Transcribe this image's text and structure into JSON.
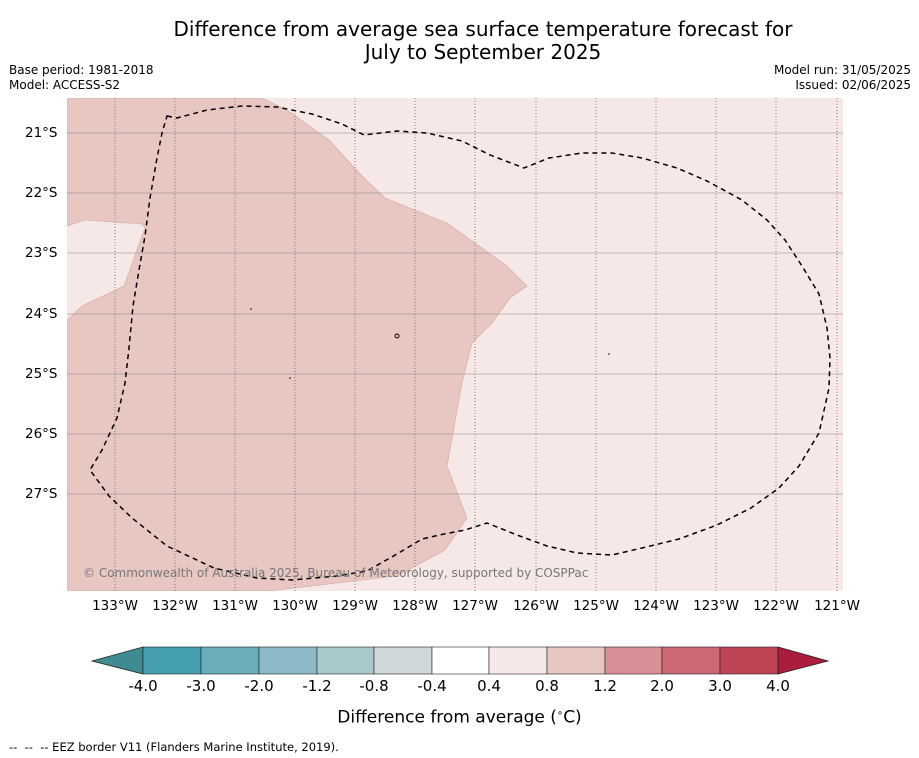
{
  "title": "Difference from average sea surface temperature forecast for\nJuly to September 2025",
  "meta_left": [
    "Base period: 1981-2018",
    "Model: ACCESS-S2"
  ],
  "meta_right": [
    "Model run: 31/05/2025",
    "Issued: 02/06/2025"
  ],
  "lat_labels": [
    "21°S",
    "22°S",
    "23°S",
    "24°S",
    "25°S",
    "26°S",
    "27°S"
  ],
  "lon_labels": [
    "133°W",
    "132°W",
    "131°W",
    "130°W",
    "129°W",
    "128°W",
    "127°W",
    "126°W",
    "125°W",
    "124°W",
    "123°W",
    "122°W",
    "121°W"
  ],
  "copyright": "© Commonwealth of Australia 2025, Bureau of Meteorology, supported by COSPPac",
  "colorbar": {
    "ticks": [
      "-4.0",
      "-3.0",
      "-2.0",
      "-1.2",
      "-0.8",
      "-0.4",
      "0.4",
      "0.8",
      "1.2",
      "2.0",
      "3.0",
      "4.0"
    ],
    "colors": [
      "#3f8b92",
      "#469fae",
      "#6aadbb",
      "#8bb9c5",
      "#a9c9cd",
      "#cfd8da",
      "#ffffff",
      "#f5e8e6",
      "#e8c6c1",
      "#d88f96",
      "#cb6873",
      "#be4355",
      "#aa1e3c"
    ],
    "label": "Difference from average (",
    "label_unit": "C)",
    "degree_symbol": "∘"
  },
  "legend_note": "--  --  -- EEZ border V11 (Flanders Marine Institute, 2019).",
  "map": {
    "background_fill": "#f5e8e6",
    "warm_region_fill": "#e8c6c1"
  }
}
